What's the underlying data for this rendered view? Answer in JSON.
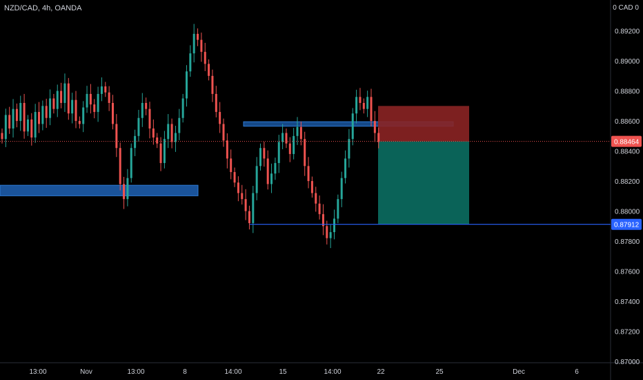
{
  "header": {
    "symbol": "NZD/CAD, 4h, OANDA",
    "currency": "0 CAD 0"
  },
  "colors": {
    "up": "#26a69a",
    "down": "#ef5350",
    "zone": "#1e62b5",
    "target": "#0b6e62",
    "stop": "#8b2424",
    "line": "#2962ff"
  },
  "chart_data": {
    "type": "candlestick",
    "ylim": [
      0.87,
      0.8935
    ],
    "y_ticks": [
      "0.89200",
      "0.89000",
      "0.88800",
      "0.88600",
      "0.88400",
      "0.88200",
      "0.88000",
      "0.87800",
      "0.87600",
      "0.87400",
      "0.87200",
      "0.87000"
    ],
    "x_ticks": [
      "13:00",
      "Nov",
      "13:00",
      "8",
      "14:00",
      "15",
      "14:00",
      "22",
      "25",
      "Dec",
      "6"
    ],
    "price_labels": {
      "current": "0.88464",
      "level": "0.87912"
    },
    "series": [
      {
        "values": [
          0.8848,
          0.8864,
          0.8855,
          0.8868,
          0.886,
          0.8872,
          0.8853,
          0.8861,
          0.8849,
          0.8866,
          0.8858,
          0.887,
          0.8862,
          0.8875,
          0.8868,
          0.888,
          0.8872,
          0.8885,
          0.8865,
          0.8874,
          0.886,
          0.8858,
          0.8869,
          0.8878,
          0.8871,
          0.8866,
          0.8878,
          0.8883,
          0.8879,
          0.8872,
          0.8858,
          0.8842,
          0.8818,
          0.8808,
          0.8822,
          0.8842,
          0.885,
          0.8862,
          0.8872,
          0.8868,
          0.8855,
          0.8849,
          0.8845,
          0.8832,
          0.8848,
          0.8858,
          0.8846,
          0.8852,
          0.8862,
          0.8875,
          0.8893,
          0.8905,
          0.8918,
          0.8914,
          0.8906,
          0.8898,
          0.889,
          0.8878,
          0.8866,
          0.8858,
          0.8847,
          0.8835,
          0.8826,
          0.8819,
          0.8812,
          0.8808,
          0.88,
          0.8792,
          0.8812,
          0.883,
          0.8842,
          0.8835,
          0.8818,
          0.8825,
          0.8832,
          0.8846,
          0.8852,
          0.8845,
          0.8838,
          0.885,
          0.8856,
          0.8848,
          0.883,
          0.882,
          0.8812,
          0.8805,
          0.8798,
          0.879,
          0.8782,
          0.8786,
          0.8795,
          0.8808,
          0.8822,
          0.8835,
          0.8848,
          0.8865,
          0.8876,
          0.8872,
          0.8868,
          0.8876,
          0.886,
          0.8852,
          0.8846
        ]
      }
    ]
  }
}
